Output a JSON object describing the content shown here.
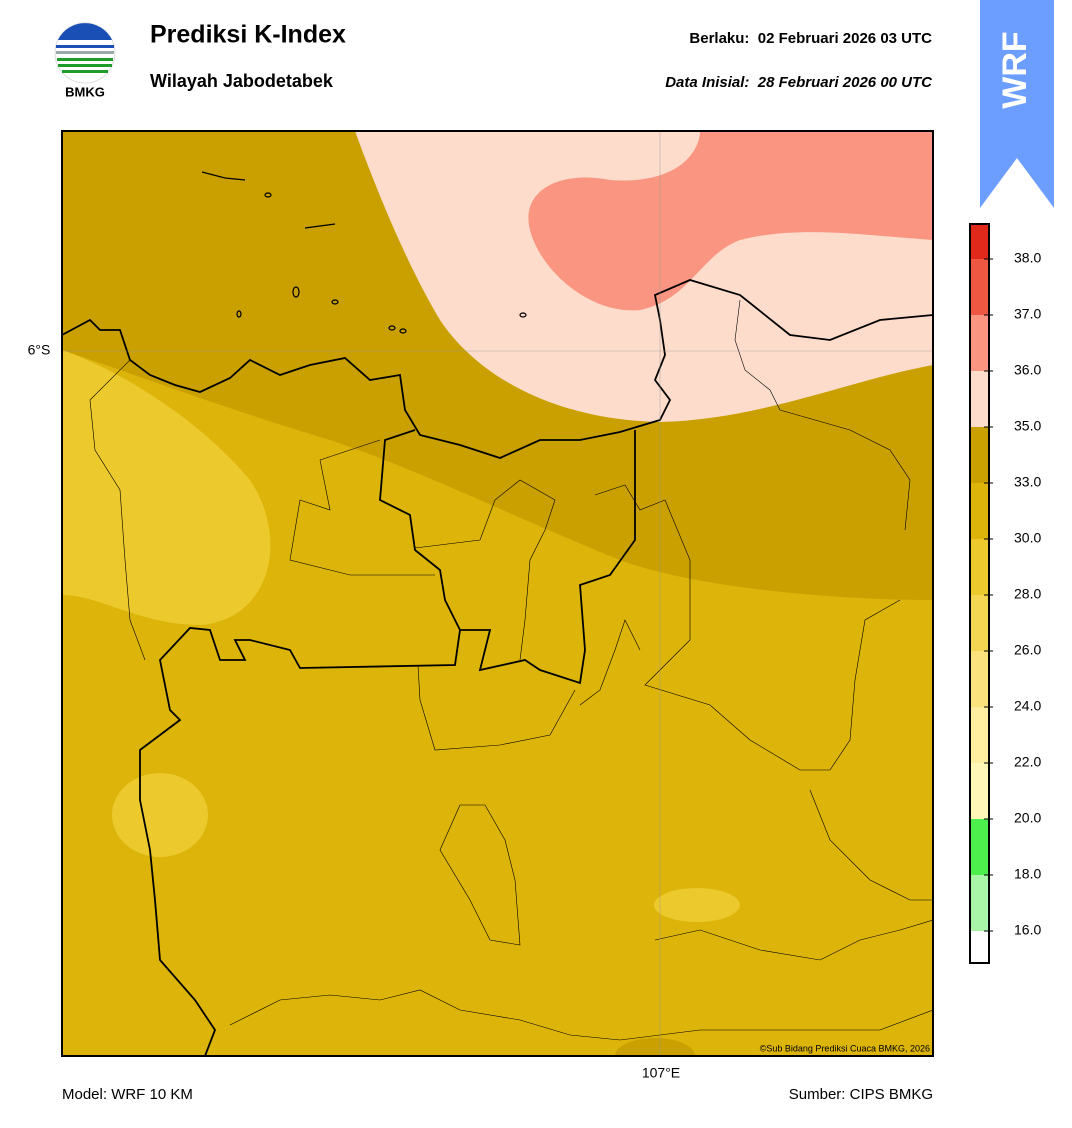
{
  "header": {
    "title": "Prediksi K-Index",
    "subtitle": "Wilayah Jabodetabek",
    "valid": "Berlaku:  02 Februari 2026 03 UTC",
    "init": "Data Inisial:  28 Februari 2026 00 UTC",
    "logo_text": "BMKG",
    "model_badge": "WRF"
  },
  "map": {
    "lat_label": "6°S",
    "lon_label": "107°E",
    "copyright": "©Sub Bidang Prediksi Cuaca BMKG, 2026"
  },
  "colorbar": {
    "ticks": [
      {
        "value": 16,
        "label": "16.0"
      },
      {
        "value": 18,
        "label": "18.0"
      },
      {
        "value": 20,
        "label": "20.0"
      },
      {
        "value": 22,
        "label": "22.0"
      },
      {
        "value": 24,
        "label": "24.0"
      },
      {
        "value": 26,
        "label": "26.0"
      },
      {
        "value": 28,
        "label": "28.0"
      },
      {
        "value": 30,
        "label": "30.0"
      },
      {
        "value": 33,
        "label": "33.0"
      },
      {
        "value": 35,
        "label": "35.0"
      },
      {
        "value": 36,
        "label": "36.0"
      },
      {
        "value": 37,
        "label": "37.0"
      },
      {
        "value": 38,
        "label": "38.0"
      }
    ],
    "colors": [
      "#ffffff",
      "#a8f5a8",
      "#4cef4c",
      "#fff6b8",
      "#ffeea0",
      "#fbe27c",
      "#f5d653",
      "#ecc92c",
      "#dcb40a",
      "#c9a000",
      "#fddccb",
      "#f99580",
      "#ee5842",
      "#e0291a"
    ]
  },
  "footer": {
    "model": "Model: WRF 10 KM",
    "source": "Sumber: CIPS BMKG"
  }
}
